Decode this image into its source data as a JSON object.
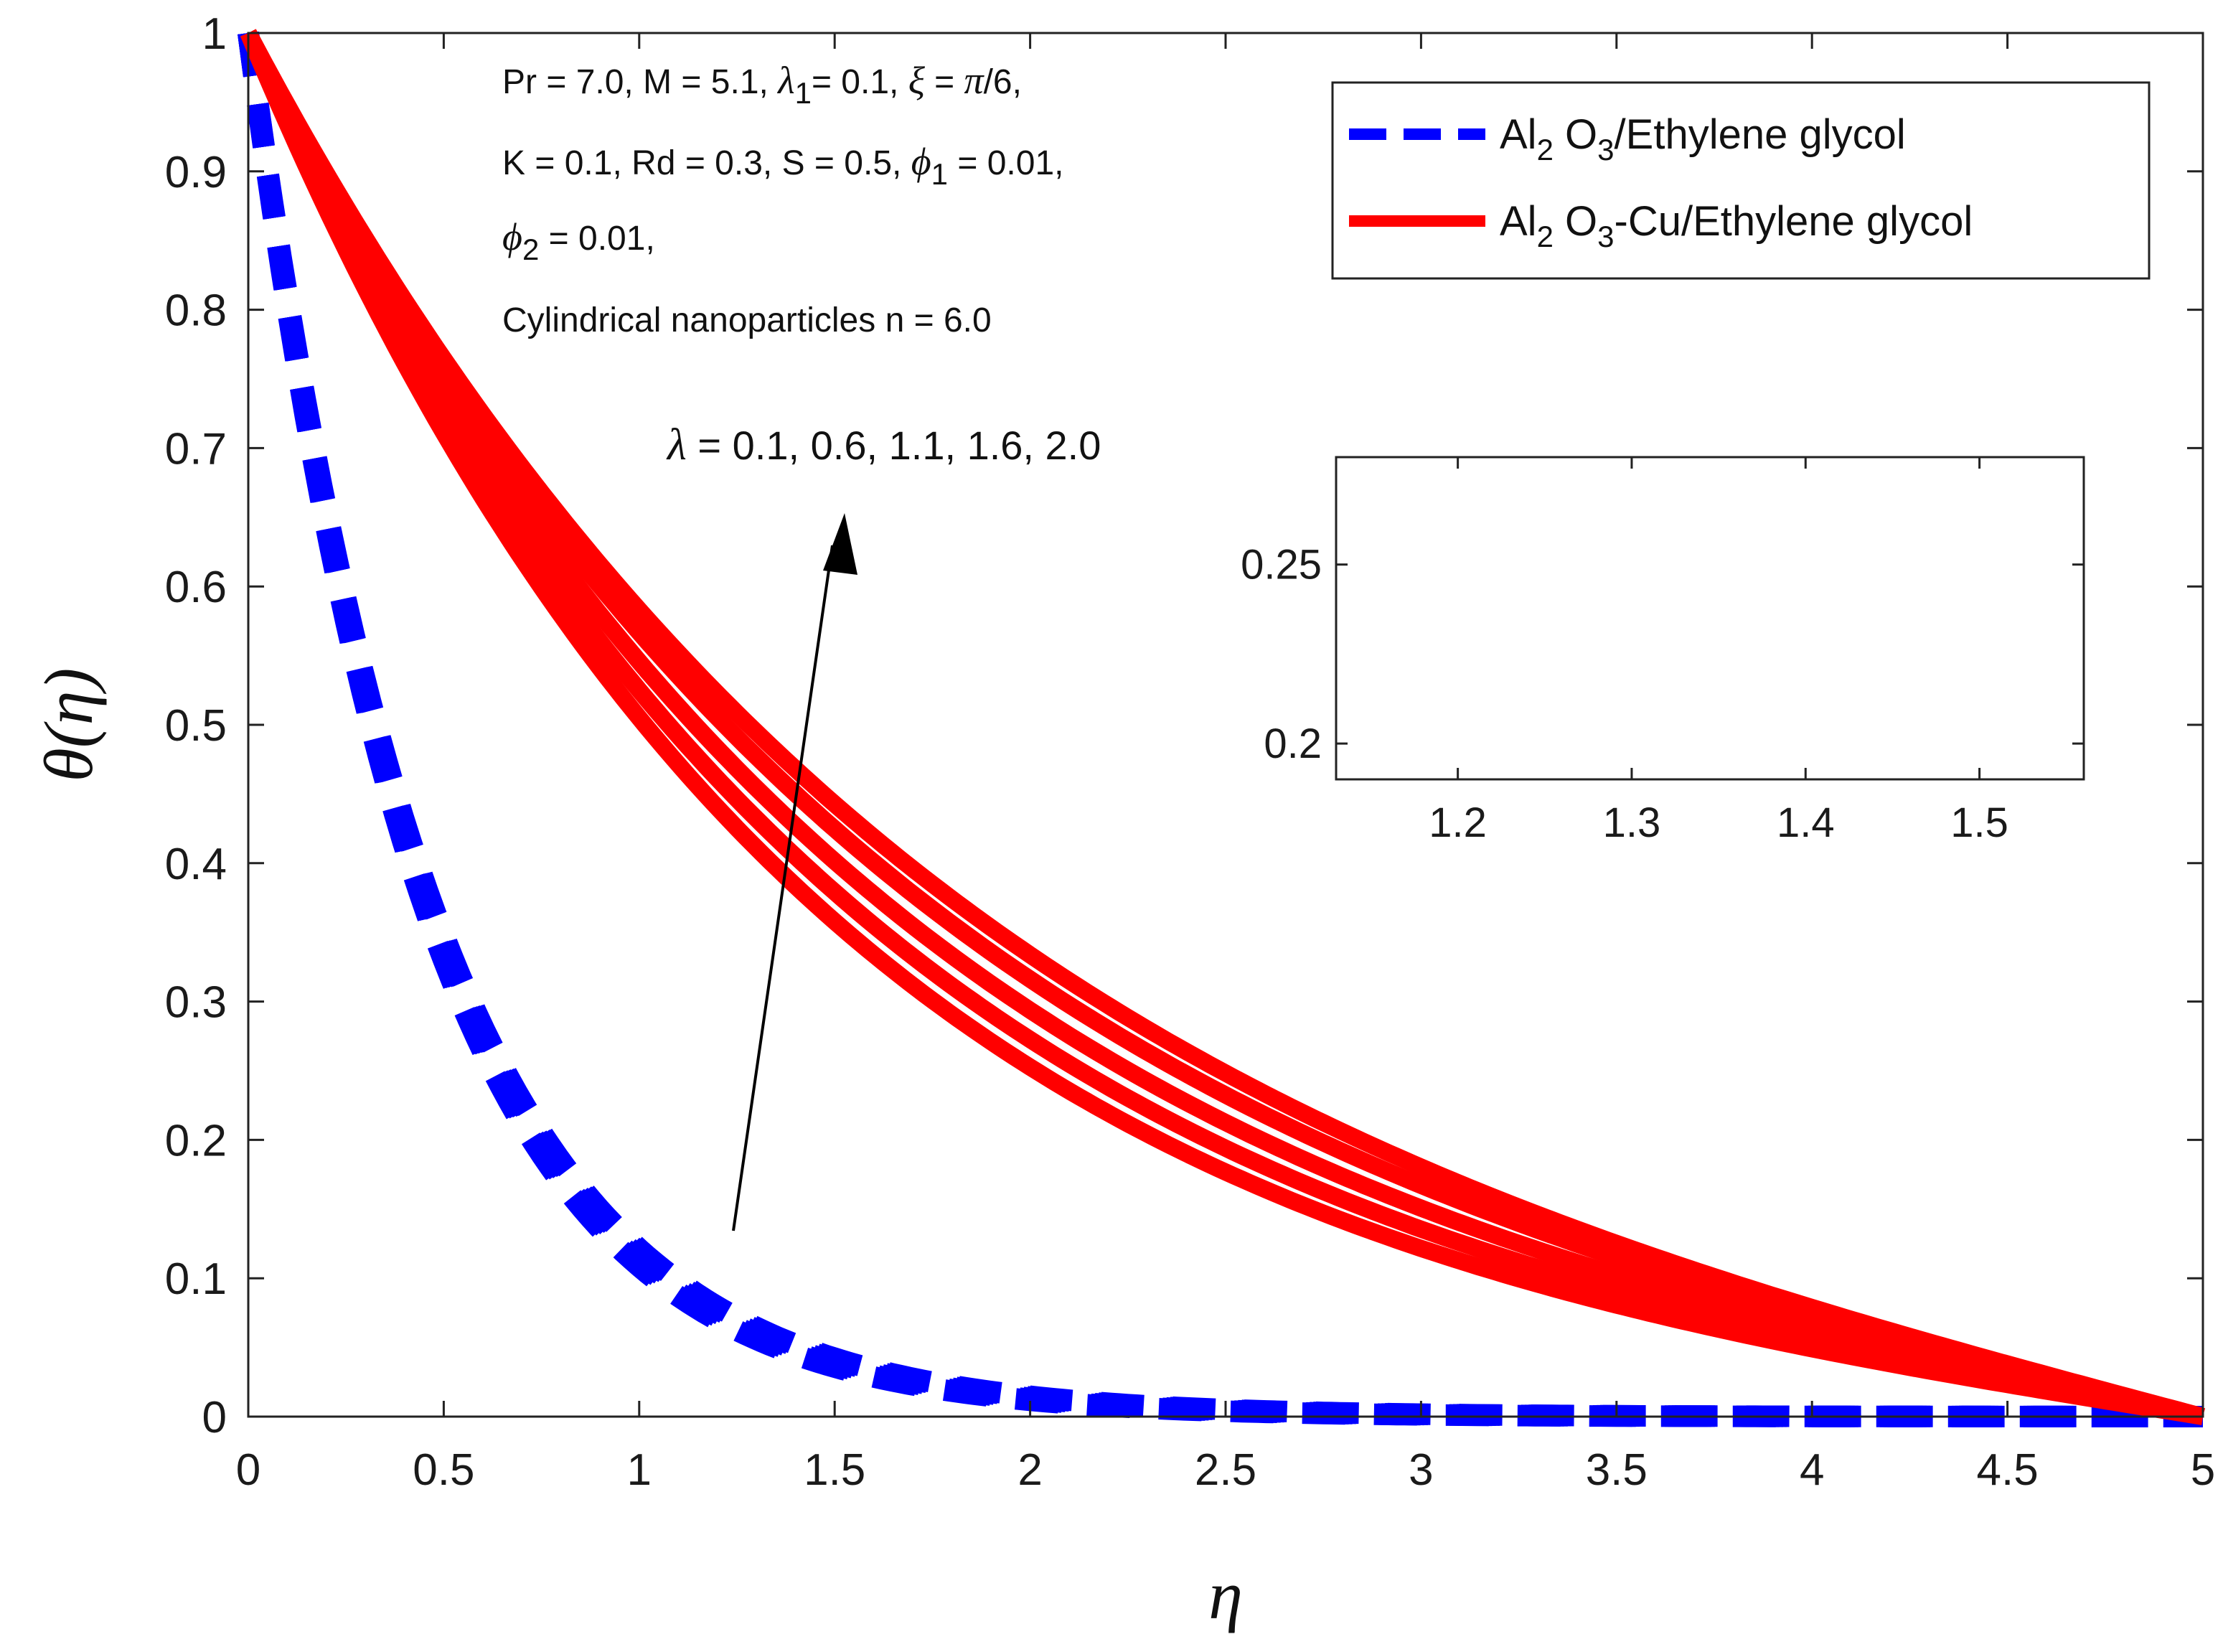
{
  "chart_data": {
    "type": "line",
    "xlabel": "η",
    "ylabel": "θ(η)",
    "xlim": [
      0,
      5
    ],
    "ylim": [
      0,
      1
    ],
    "x_ticks": [
      "0",
      "0.5",
      "1",
      "1.5",
      "2",
      "2.5",
      "3",
      "3.5",
      "4",
      "4.5",
      "5"
    ],
    "y_ticks": [
      "0",
      "0.1",
      "0.2",
      "0.3",
      "0.4",
      "0.5",
      "0.6",
      "0.7",
      "0.8",
      "0.9",
      "1"
    ],
    "legend": {
      "placement": "top-right",
      "entries": [
        {
          "prefix": "Al",
          "sub1": "2",
          "mid": " O",
          "sub2": "3",
          "suffix": "/Ethylene glycol",
          "style": "dashed",
          "color": "#0000ff"
        },
        {
          "prefix": "Al",
          "sub1": "2",
          "mid": " O",
          "sub2": "3",
          "suffix": "-Cu/Ethylene glycol",
          "style": "solid",
          "color": "#ff0000"
        }
      ]
    },
    "parameters": {
      "line1": {
        "a": "Pr = 7.0, M = 5.1, ",
        "lam_sym": "λ",
        "lam_sub": "1",
        "b": "= 0.1, ",
        "xi_sym": "ξ",
        "c": " = ",
        "pi_sym": "π",
        "d": "/6,"
      },
      "line2": {
        "a": "K = 0.1, Rd = 0.3, S = 0.5, ",
        "phi_sym": "ϕ",
        "phi_sub": "1",
        "b": " = 0.01,"
      },
      "line3": {
        "phi_sym": "ϕ",
        "phi_sub": "2",
        "b": " = 0.01,"
      },
      "line4": "Cylindrical nanoparticles n = 6.0"
    },
    "annotation": {
      "sym": "λ",
      "text": " = 0.1, 0.6, 1.1, 1.6, 2.0"
    },
    "lambda_values": [
      "0.1",
      "0.6",
      "1.1",
      "1.6",
      "2.0"
    ],
    "series": [
      {
        "name": "Al2O3/Ethylene glycol",
        "fluid": "mono",
        "style": "dashed",
        "color": "#0000ff",
        "decay_rates": [
          2.22,
          2.19,
          2.16,
          2.13,
          2.11
        ]
      },
      {
        "name": "Al2O3-Cu/Ethylene glycol",
        "fluid": "hybrid",
        "style": "solid",
        "color": "#ff0000",
        "decay_rates": [
          0.68,
          0.64,
          0.6,
          0.56,
          0.53
        ]
      }
    ],
    "inset": {
      "xlim": [
        1.13,
        1.56
      ],
      "ylim": [
        0.19,
        0.28
      ],
      "x_ticks": [
        "1.2",
        "1.3",
        "1.4",
        "1.5"
      ],
      "y_ticks": [
        "0.2",
        "0.25"
      ]
    }
  }
}
